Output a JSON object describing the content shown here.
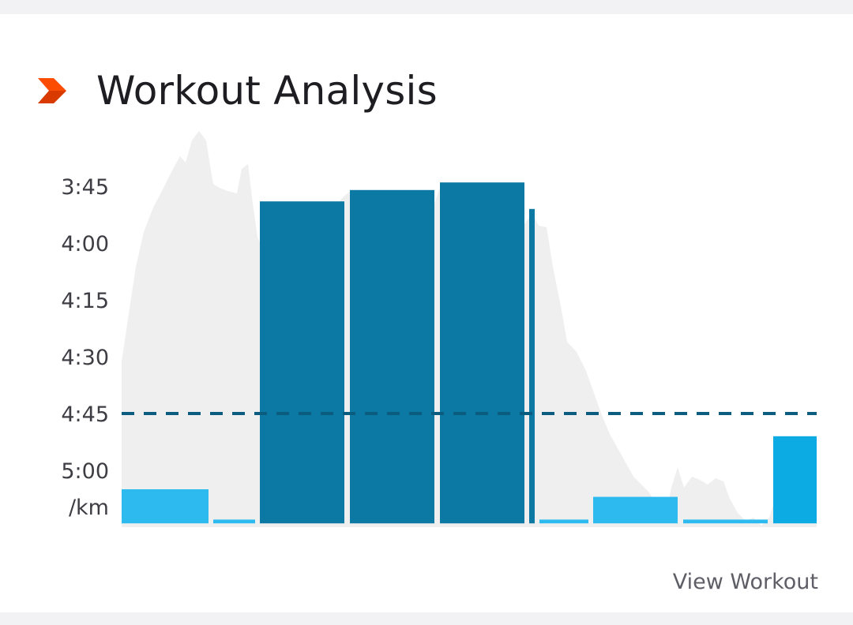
{
  "header": {
    "title": "Workout Analysis"
  },
  "footer": {
    "link_label": "View Workout"
  },
  "colors": {
    "accent": "#fc4c02",
    "fast_lap": "#0475a2",
    "slow_lap": "#22b7ee",
    "last_lap": "#00a7e1",
    "average_line": "#0b5d80",
    "profile": "#efefef"
  },
  "chart_data": {
    "type": "bar",
    "y_unit": "/km",
    "y_ticks": [
      "3:45",
      "4:00",
      "4:15",
      "4:30",
      "4:45",
      "5:00"
    ],
    "y_tick_seconds": [
      225,
      240,
      255,
      270,
      285,
      300
    ],
    "y_direction": "inverted",
    "baseline_seconds": 314,
    "average_pace_seconds": 285,
    "laps": [
      {
        "pace": "5:05",
        "category": "slow"
      },
      {
        "pace": "5:13",
        "category": "slow"
      },
      {
        "pace": "3:49",
        "category": "fast"
      },
      {
        "pace": "3:46",
        "category": "fast"
      },
      {
        "pace": "3:44",
        "category": "fast"
      },
      {
        "pace": "3:51",
        "category": "fast"
      },
      {
        "pace": "5:13",
        "category": "slow"
      },
      {
        "pace": "5:07",
        "category": "slow"
      },
      {
        "pace": "5:13",
        "category": "slow"
      },
      {
        "pace": "4:51",
        "category": "last"
      }
    ],
    "grid": false,
    "legend": "none"
  }
}
